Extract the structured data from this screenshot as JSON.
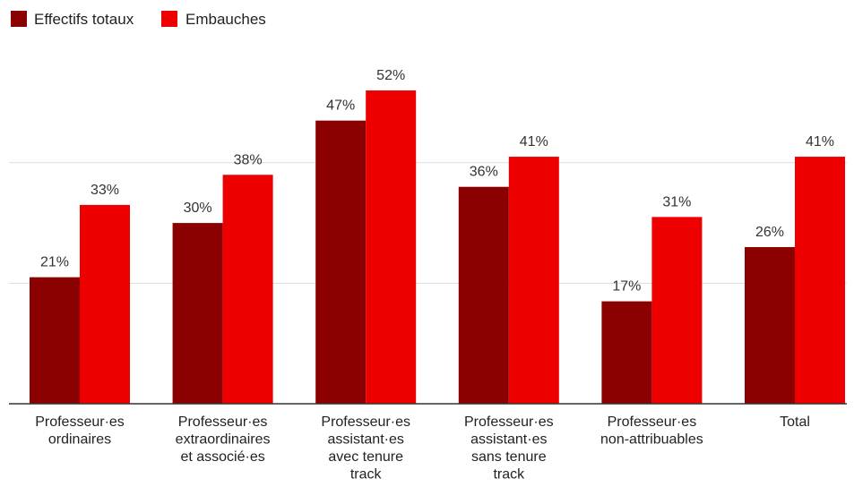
{
  "chart_data": {
    "type": "bar",
    "categories": [
      [
        "Professeur·es",
        "ordinaires"
      ],
      [
        "Professeur·es",
        "extraordinaires",
        "et associé·es"
      ],
      [
        "Professeur·es",
        "assistant·es",
        "avec tenure",
        "track"
      ],
      [
        "Professeur·es",
        "assistant·es",
        "sans tenure",
        "track"
      ],
      [
        "Professeur·es",
        "non-attribuables"
      ],
      [
        "Total"
      ]
    ],
    "series": [
      {
        "name": "Effectifs totaux",
        "color": "#8b0000",
        "values": [
          21,
          30,
          47,
          36,
          17,
          26
        ],
        "labels": [
          "21%",
          "30%",
          "47%",
          "36%",
          "17%",
          "26%"
        ]
      },
      {
        "name": "Embauches",
        "color": "#ee0000",
        "values": [
          33,
          38,
          52,
          41,
          31,
          41
        ],
        "labels": [
          "33%",
          "38%",
          "52%",
          "41%",
          "31%",
          "41%"
        ]
      }
    ],
    "ylim": [
      0,
      60
    ],
    "grid": true,
    "legend": "top-left"
  }
}
